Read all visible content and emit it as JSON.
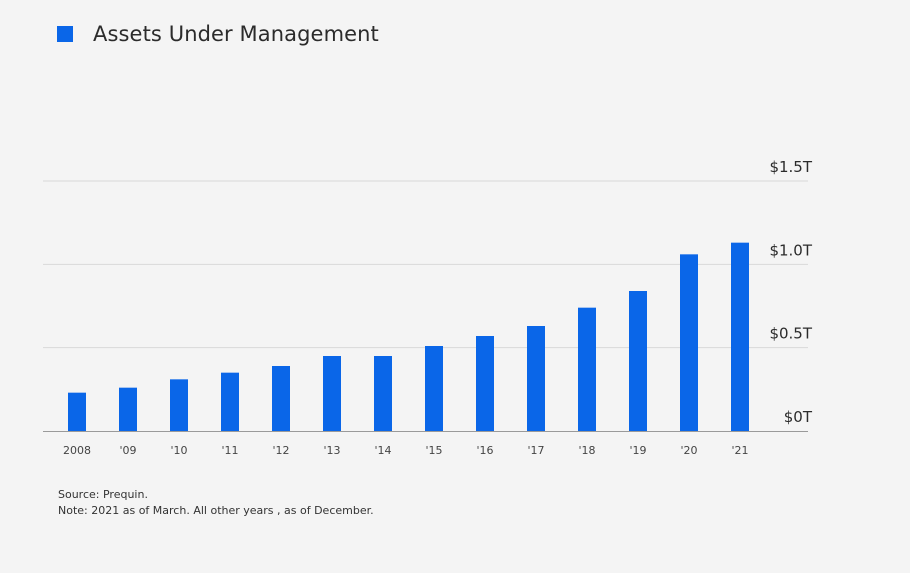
{
  "colors": {
    "bar": "#0a66e8",
    "grid": "#d9d9d9",
    "axis": "#9a9a9a",
    "text": "#2b2b2b",
    "background": "#f4f4f4"
  },
  "legend": {
    "label": "Assets Under Management"
  },
  "notes": {
    "source": "Source: Prequin.",
    "note": "Note: 2021 as of March. All other years , as of December."
  },
  "chart_data": {
    "type": "bar",
    "categories": [
      "2008",
      "'09",
      "'10",
      "'11",
      "'12",
      "'13",
      "'14",
      "'15",
      "'16",
      "'17",
      "'18",
      "'19",
      "'20",
      "'21"
    ],
    "series": [
      {
        "name": "Assets Under Management",
        "values": [
          0.23,
          0.26,
          0.31,
          0.35,
          0.39,
          0.45,
          0.45,
          0.51,
          0.57,
          0.63,
          0.74,
          0.84,
          1.06,
          1.13
        ]
      }
    ],
    "y_ticks": [
      {
        "value": 0,
        "label": "$0T"
      },
      {
        "value": 0.5,
        "label": "$0.5T"
      },
      {
        "value": 1.0,
        "label": "$1.0T"
      },
      {
        "value": 1.5,
        "label": "$1.5T"
      }
    ],
    "ylim": [
      0,
      1.5
    ],
    "y_axis_position": "right",
    "grid": true,
    "legend_position": "top-left",
    "title": "",
    "xlabel": "",
    "ylabel": ""
  }
}
